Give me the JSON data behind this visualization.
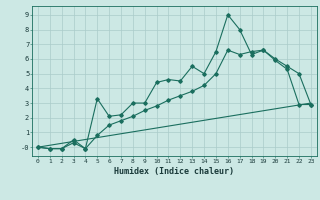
{
  "xlabel": "Humidex (Indice chaleur)",
  "bg_color": "#cce8e4",
  "grid_color": "#aaccca",
  "line_color": "#1a6e5e",
  "xlim": [
    -0.5,
    23.5
  ],
  "ylim": [
    -0.6,
    9.6
  ],
  "xticks": [
    0,
    1,
    2,
    3,
    4,
    5,
    6,
    7,
    8,
    9,
    10,
    11,
    12,
    13,
    14,
    15,
    16,
    17,
    18,
    19,
    20,
    21,
    22,
    23
  ],
  "yticks": [
    0,
    1,
    2,
    3,
    4,
    5,
    6,
    7,
    8,
    9
  ],
  "ytick_labels": [
    "-0",
    "1",
    "2",
    "3",
    "4",
    "5",
    "6",
    "7",
    "8",
    "9"
  ],
  "line1_x": [
    0,
    1,
    2,
    3,
    4,
    5,
    6,
    7,
    8,
    9,
    10,
    11,
    12,
    13,
    14,
    15,
    16,
    17,
    18,
    19,
    20,
    21,
    22,
    23
  ],
  "line1_y": [
    0.0,
    -0.1,
    -0.1,
    0.5,
    -0.1,
    3.3,
    2.1,
    2.2,
    3.0,
    3.0,
    4.4,
    4.6,
    4.5,
    5.5,
    5.0,
    6.5,
    9.0,
    8.0,
    6.3,
    6.6,
    5.9,
    5.3,
    2.9,
    2.9
  ],
  "line2_x": [
    0,
    1,
    2,
    3,
    4,
    5,
    6,
    7,
    8,
    9,
    10,
    11,
    12,
    13,
    14,
    15,
    16,
    17,
    18,
    19,
    20,
    21,
    22,
    23
  ],
  "line2_y": [
    0.0,
    -0.1,
    -0.1,
    0.3,
    -0.1,
    0.8,
    1.5,
    1.8,
    2.1,
    2.5,
    2.8,
    3.2,
    3.5,
    3.8,
    4.2,
    5.0,
    6.6,
    6.3,
    6.5,
    6.6,
    6.0,
    5.5,
    5.0,
    2.9
  ],
  "line3_x": [
    0,
    23
  ],
  "line3_y": [
    0.0,
    3.0
  ]
}
